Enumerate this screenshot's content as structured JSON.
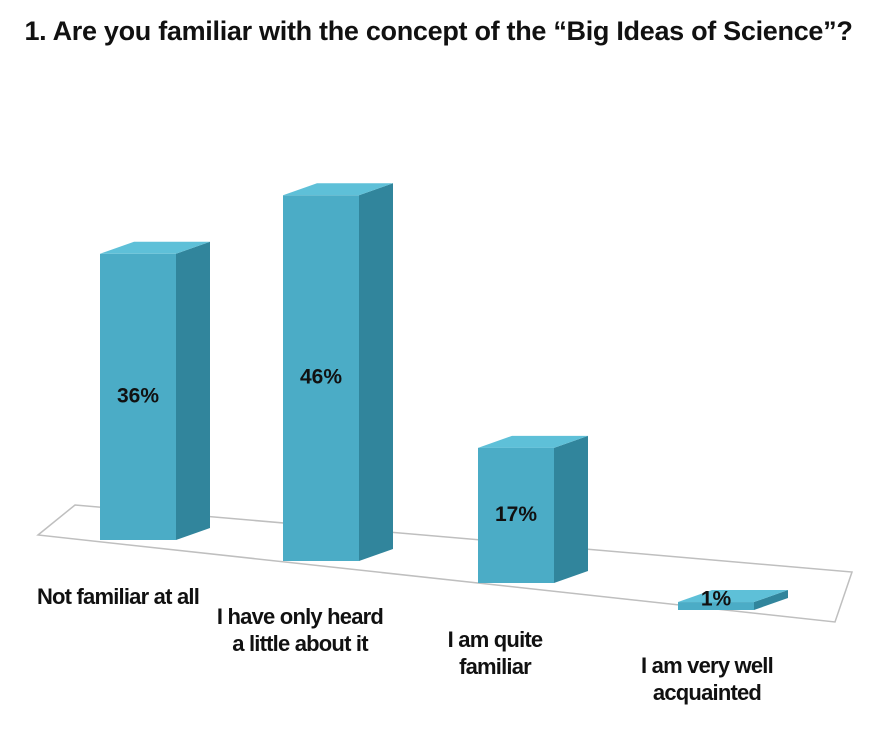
{
  "chart_data": {
    "type": "bar3d",
    "title": "1. Are you familiar with the concept of the “Big Ideas of Science”?",
    "categories": [
      "Not familiar at all",
      "I have only heard a little about it",
      "I am quite familiar",
      "I am very well acquainted"
    ],
    "values": [
      36,
      46,
      17,
      1
    ],
    "value_labels": [
      "36%",
      "46%",
      "17%",
      "1%"
    ],
    "color": "#4bacc6"
  }
}
